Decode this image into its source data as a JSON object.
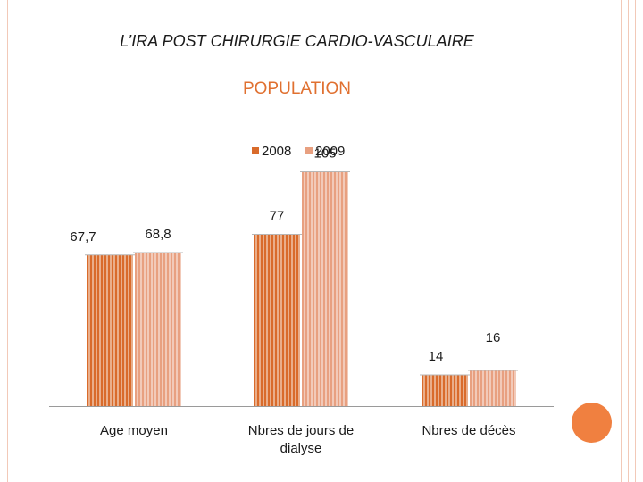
{
  "slide": {
    "title": "L’IRA POST CHIRURGIE CARDIO-VASCULAIRE"
  },
  "chart_data": {
    "type": "bar",
    "title": "POPULATION",
    "categories": [
      "Age moyen",
      "Nbres de jours de dialyse",
      "Nbres de décès"
    ],
    "category_lines": [
      [
        "Age moyen"
      ],
      [
        "Nbres de jours de",
        "dialyse"
      ],
      [
        "Nbres de décès"
      ]
    ],
    "series": [
      {
        "name": "2008",
        "values": [
          67.7,
          77,
          14
        ],
        "labels": [
          "67,7",
          "77",
          "14"
        ],
        "color": "#d96b2b"
      },
      {
        "name": "2009",
        "values": [
          68.8,
          105,
          16
        ],
        "labels": [
          "68,8",
          "105",
          "16"
        ],
        "color": "#e8a080"
      }
    ],
    "ylim": [
      0,
      105
    ],
    "xlabel": "",
    "ylabel": "",
    "legend": "top"
  }
}
